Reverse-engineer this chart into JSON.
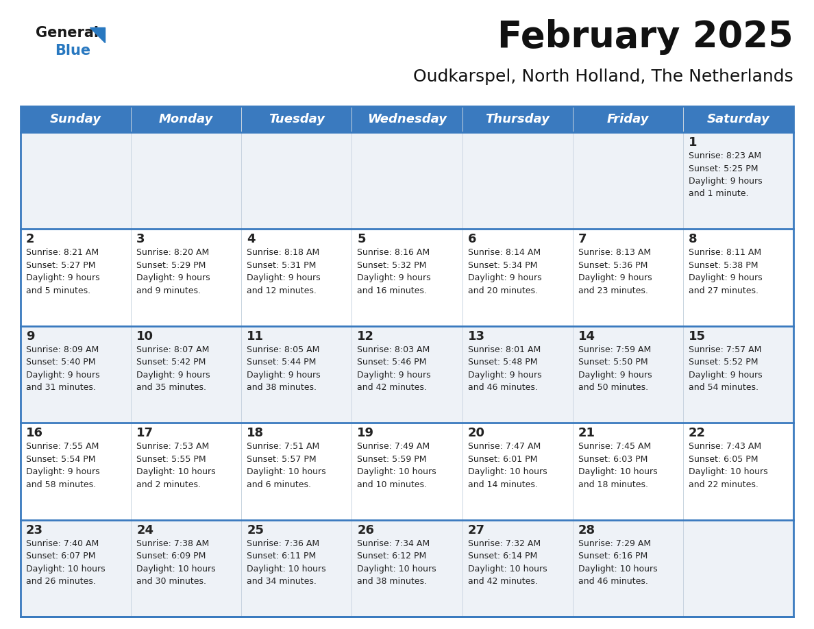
{
  "title": "February 2025",
  "subtitle": "Oudkarspel, North Holland, The Netherlands",
  "header_bg": "#3a7abf",
  "header_text": "#ffffff",
  "cell_bg_odd": "#eef2f7",
  "cell_bg_even": "#ffffff",
  "line_color": "#3a7abf",
  "text_color": "#222222",
  "day_headers": [
    "Sunday",
    "Monday",
    "Tuesday",
    "Wednesday",
    "Thursday",
    "Friday",
    "Saturday"
  ],
  "weeks": [
    [
      {
        "day": "",
        "info": ""
      },
      {
        "day": "",
        "info": ""
      },
      {
        "day": "",
        "info": ""
      },
      {
        "day": "",
        "info": ""
      },
      {
        "day": "",
        "info": ""
      },
      {
        "day": "",
        "info": ""
      },
      {
        "day": "1",
        "info": "Sunrise: 8:23 AM\nSunset: 5:25 PM\nDaylight: 9 hours\nand 1 minute."
      }
    ],
    [
      {
        "day": "2",
        "info": "Sunrise: 8:21 AM\nSunset: 5:27 PM\nDaylight: 9 hours\nand 5 minutes."
      },
      {
        "day": "3",
        "info": "Sunrise: 8:20 AM\nSunset: 5:29 PM\nDaylight: 9 hours\nand 9 minutes."
      },
      {
        "day": "4",
        "info": "Sunrise: 8:18 AM\nSunset: 5:31 PM\nDaylight: 9 hours\nand 12 minutes."
      },
      {
        "day": "5",
        "info": "Sunrise: 8:16 AM\nSunset: 5:32 PM\nDaylight: 9 hours\nand 16 minutes."
      },
      {
        "day": "6",
        "info": "Sunrise: 8:14 AM\nSunset: 5:34 PM\nDaylight: 9 hours\nand 20 minutes."
      },
      {
        "day": "7",
        "info": "Sunrise: 8:13 AM\nSunset: 5:36 PM\nDaylight: 9 hours\nand 23 minutes."
      },
      {
        "day": "8",
        "info": "Sunrise: 8:11 AM\nSunset: 5:38 PM\nDaylight: 9 hours\nand 27 minutes."
      }
    ],
    [
      {
        "day": "9",
        "info": "Sunrise: 8:09 AM\nSunset: 5:40 PM\nDaylight: 9 hours\nand 31 minutes."
      },
      {
        "day": "10",
        "info": "Sunrise: 8:07 AM\nSunset: 5:42 PM\nDaylight: 9 hours\nand 35 minutes."
      },
      {
        "day": "11",
        "info": "Sunrise: 8:05 AM\nSunset: 5:44 PM\nDaylight: 9 hours\nand 38 minutes."
      },
      {
        "day": "12",
        "info": "Sunrise: 8:03 AM\nSunset: 5:46 PM\nDaylight: 9 hours\nand 42 minutes."
      },
      {
        "day": "13",
        "info": "Sunrise: 8:01 AM\nSunset: 5:48 PM\nDaylight: 9 hours\nand 46 minutes."
      },
      {
        "day": "14",
        "info": "Sunrise: 7:59 AM\nSunset: 5:50 PM\nDaylight: 9 hours\nand 50 minutes."
      },
      {
        "day": "15",
        "info": "Sunrise: 7:57 AM\nSunset: 5:52 PM\nDaylight: 9 hours\nand 54 minutes."
      }
    ],
    [
      {
        "day": "16",
        "info": "Sunrise: 7:55 AM\nSunset: 5:54 PM\nDaylight: 9 hours\nand 58 minutes."
      },
      {
        "day": "17",
        "info": "Sunrise: 7:53 AM\nSunset: 5:55 PM\nDaylight: 10 hours\nand 2 minutes."
      },
      {
        "day": "18",
        "info": "Sunrise: 7:51 AM\nSunset: 5:57 PM\nDaylight: 10 hours\nand 6 minutes."
      },
      {
        "day": "19",
        "info": "Sunrise: 7:49 AM\nSunset: 5:59 PM\nDaylight: 10 hours\nand 10 minutes."
      },
      {
        "day": "20",
        "info": "Sunrise: 7:47 AM\nSunset: 6:01 PM\nDaylight: 10 hours\nand 14 minutes."
      },
      {
        "day": "21",
        "info": "Sunrise: 7:45 AM\nSunset: 6:03 PM\nDaylight: 10 hours\nand 18 minutes."
      },
      {
        "day": "22",
        "info": "Sunrise: 7:43 AM\nSunset: 6:05 PM\nDaylight: 10 hours\nand 22 minutes."
      }
    ],
    [
      {
        "day": "23",
        "info": "Sunrise: 7:40 AM\nSunset: 6:07 PM\nDaylight: 10 hours\nand 26 minutes."
      },
      {
        "day": "24",
        "info": "Sunrise: 7:38 AM\nSunset: 6:09 PM\nDaylight: 10 hours\nand 30 minutes."
      },
      {
        "day": "25",
        "info": "Sunrise: 7:36 AM\nSunset: 6:11 PM\nDaylight: 10 hours\nand 34 minutes."
      },
      {
        "day": "26",
        "info": "Sunrise: 7:34 AM\nSunset: 6:12 PM\nDaylight: 10 hours\nand 38 minutes."
      },
      {
        "day": "27",
        "info": "Sunrise: 7:32 AM\nSunset: 6:14 PM\nDaylight: 10 hours\nand 42 minutes."
      },
      {
        "day": "28",
        "info": "Sunrise: 7:29 AM\nSunset: 6:16 PM\nDaylight: 10 hours\nand 46 minutes."
      },
      {
        "day": "",
        "info": ""
      }
    ]
  ],
  "logo_general_color": "#1a1a1a",
  "logo_blue_color": "#2878c0",
  "logo_triangle_color": "#2878c0",
  "title_fontsize": 38,
  "subtitle_fontsize": 18,
  "header_fontsize": 13,
  "day_num_fontsize": 13,
  "info_fontsize": 9
}
